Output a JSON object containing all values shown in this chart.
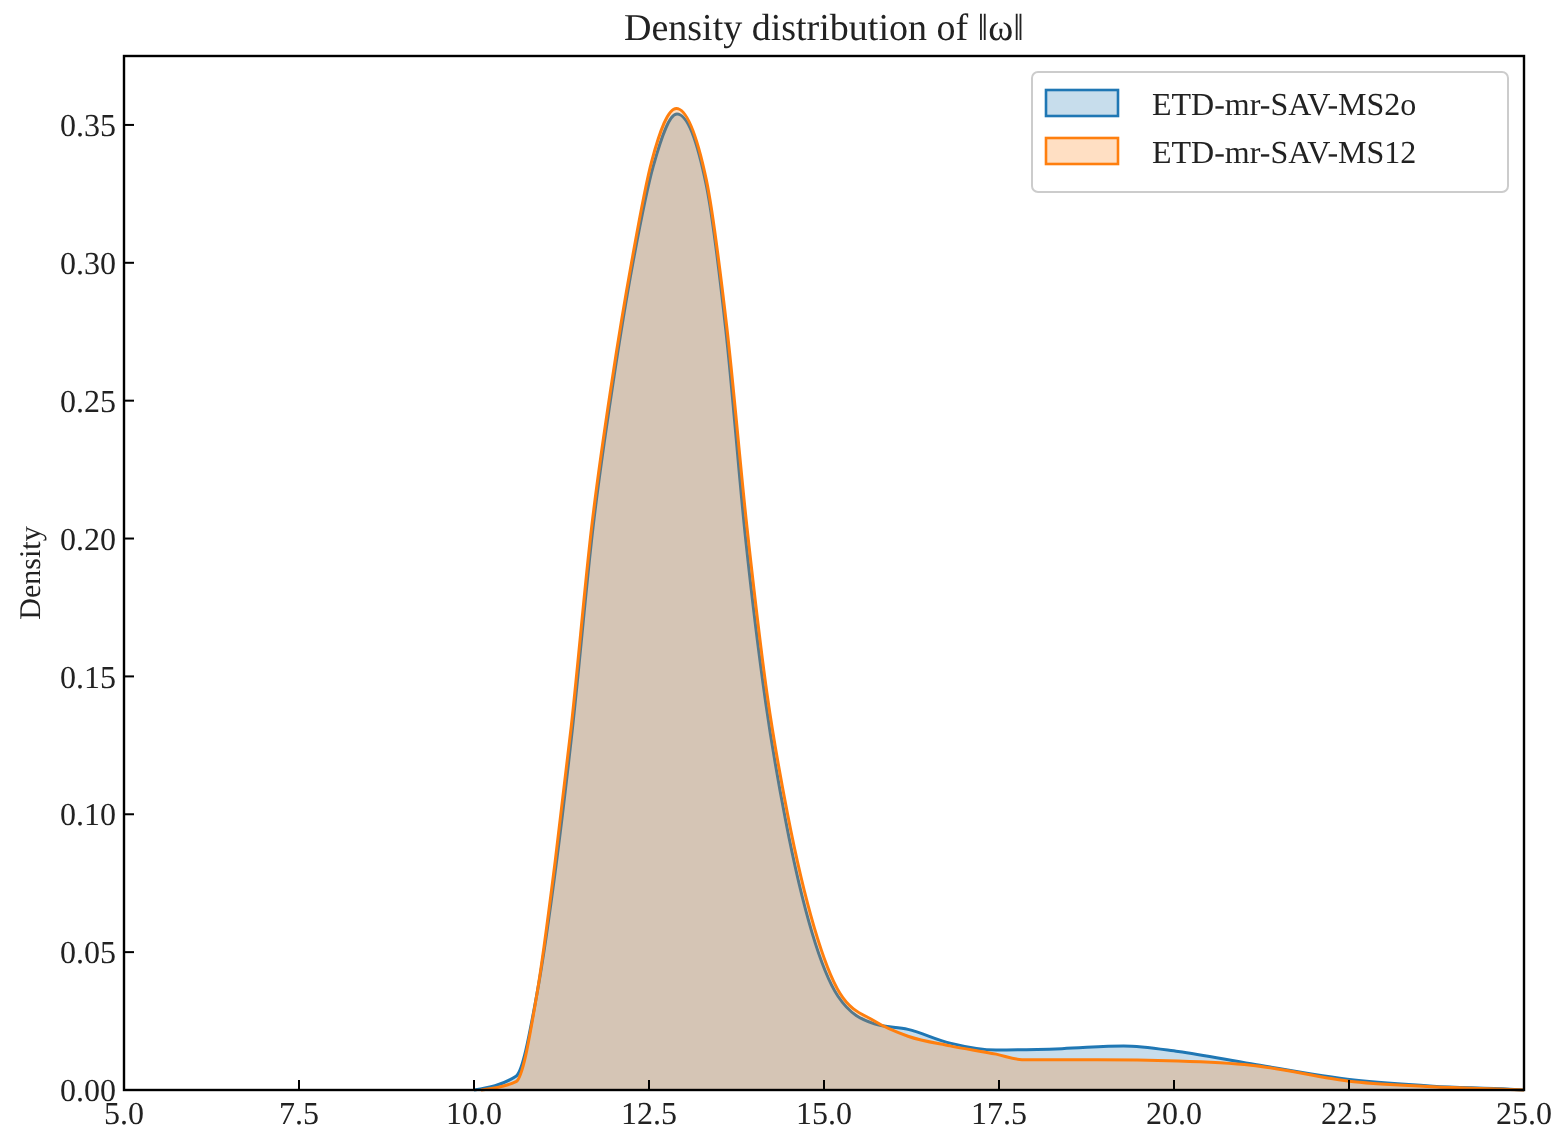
{
  "chart_data": {
    "type": "area",
    "title": "Density distribution of ‖ω‖",
    "ylabel": "Density",
    "xlim": [
      5,
      25
    ],
    "ylim": [
      0,
      0.375
    ],
    "xticks": [
      {
        "value": 5,
        "label": "5.0"
      },
      {
        "value": 7.5,
        "label": "7.5"
      },
      {
        "value": 10,
        "label": "10.0"
      },
      {
        "value": 12.5,
        "label": "12.5"
      },
      {
        "value": 15,
        "label": "15.0"
      },
      {
        "value": 17.5,
        "label": "17.5"
      },
      {
        "value": 20,
        "label": "20.0"
      },
      {
        "value": 22.5,
        "label": "22.5"
      },
      {
        "value": 25,
        "label": "25.0"
      }
    ],
    "yticks": [
      {
        "value": 0,
        "label": "0.00"
      },
      {
        "value": 0.05,
        "label": "0.05"
      },
      {
        "value": 0.1,
        "label": "0.10"
      },
      {
        "value": 0.15,
        "label": "0.15"
      },
      {
        "value": 0.2,
        "label": "0.20"
      },
      {
        "value": 0.25,
        "label": "0.25"
      },
      {
        "value": 0.3,
        "label": "0.30"
      },
      {
        "value": 0.35,
        "label": "0.35"
      }
    ],
    "grid": false,
    "legend": "top right",
    "series": [
      {
        "name": "ETD-mr-SAV-MS2o",
        "color": "#1f77b4",
        "x": [
          10.0,
          10.6,
          10.9,
          11.18,
          11.41,
          11.7,
          11.99,
          12.27,
          12.56,
          12.9,
          13.32,
          13.6,
          13.88,
          14.17,
          14.45,
          14.83,
          15.2,
          15.72,
          16.2,
          16.8,
          17.46,
          18.4,
          19.28,
          20.06,
          21.1,
          22.57,
          23.7,
          24.8,
          25
        ],
        "values": [
          0,
          0.005,
          0.035,
          0.083,
          0.132,
          0.204,
          0.257,
          0.3,
          0.335,
          0.354,
          0.328,
          0.275,
          0.2,
          0.14,
          0.098,
          0.057,
          0.034,
          0.024,
          0.022,
          0.017,
          0.0145,
          0.015,
          0.016,
          0.014,
          0.0095,
          0.0036,
          0.0014,
          0.0003,
          0
        ]
      },
      {
        "name": "ETD-mr-SAV-MS12",
        "color": "#ff7f0e",
        "x": [
          10.1,
          10.6,
          10.9,
          11.16,
          11.39,
          11.68,
          11.97,
          12.25,
          12.54,
          12.89,
          13.32,
          13.61,
          13.9,
          14.19,
          14.48,
          14.86,
          15.23,
          15.72,
          16.2,
          16.8,
          17.46,
          17.83,
          18.9,
          20.06,
          21.1,
          22.57,
          23.7,
          24.8,
          25
        ],
        "values": [
          0,
          0.003,
          0.035,
          0.083,
          0.132,
          0.204,
          0.257,
          0.3,
          0.337,
          0.356,
          0.33,
          0.277,
          0.204,
          0.143,
          0.1,
          0.059,
          0.035,
          0.025,
          0.0195,
          0.016,
          0.013,
          0.011,
          0.011,
          0.0105,
          0.009,
          0.003,
          0.0012,
          0.0002,
          0
        ]
      }
    ]
  }
}
